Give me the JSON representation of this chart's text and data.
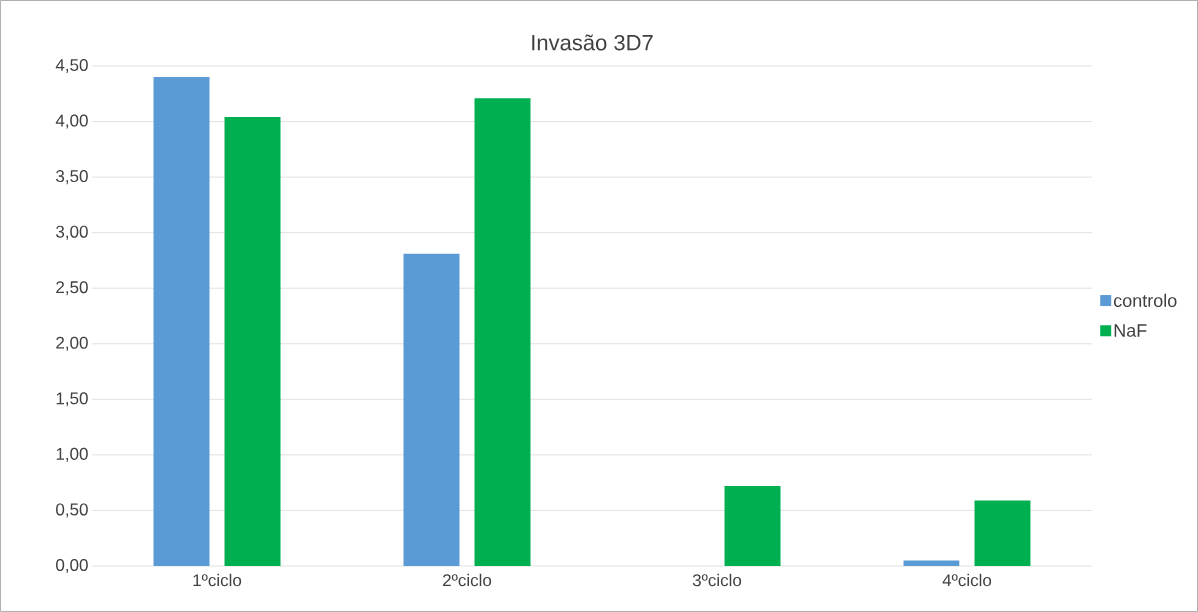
{
  "chart_data": {
    "type": "bar",
    "title": "Invasão 3D7",
    "categories": [
      "1ºciclo",
      "2ºciclo",
      "3ºciclo",
      "4ºciclo"
    ],
    "series": [
      {
        "name": "controlo",
        "color": "#5b9bd5",
        "values": [
          4.4,
          2.81,
          null,
          0.05
        ]
      },
      {
        "name": "NaF",
        "color": "#00b050",
        "values": [
          4.04,
          4.21,
          0.72,
          0.59
        ]
      }
    ],
    "ylim": [
      0,
      4.5
    ],
    "yticks": [
      {
        "value": 0,
        "label": "0,00"
      },
      {
        "value": 0.5,
        "label": "0,50"
      },
      {
        "value": 1,
        "label": "1,00"
      },
      {
        "value": 1.5,
        "label": "1,50"
      },
      {
        "value": 2,
        "label": "2,00"
      },
      {
        "value": 2.5,
        "label": "2,50"
      },
      {
        "value": 3,
        "label": "3,00"
      },
      {
        "value": 3.5,
        "label": "3,50"
      },
      {
        "value": 4,
        "label": "4,00"
      },
      {
        "value": 4.5,
        "label": "4,50"
      }
    ],
    "grid": "y",
    "legend": "right"
  }
}
